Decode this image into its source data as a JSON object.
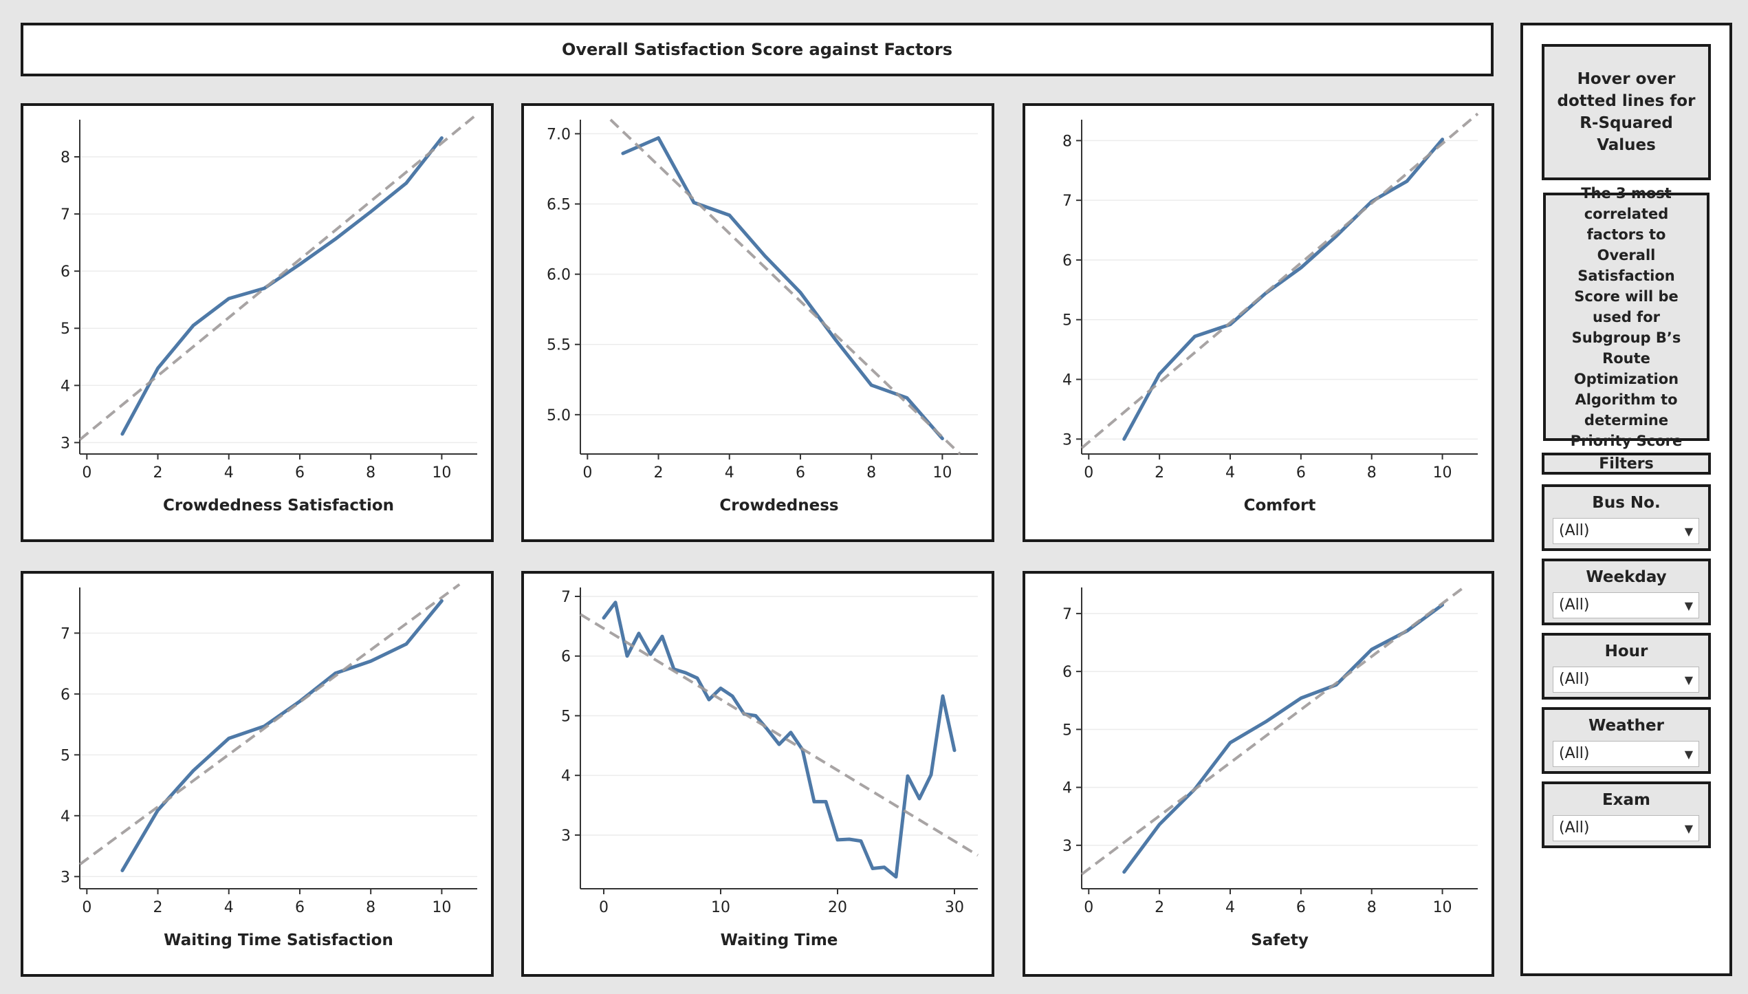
{
  "header": {
    "title": "Overall Satisfaction Score against Factors"
  },
  "sidebar": {
    "note1": "Hover over dotted lines for R-Squared Values",
    "note2": "The 3 most correlated factors to Overall Satisfaction Score will be used for Subgroup B’s Route Optimization Algorithm to determine Priority Score",
    "filters_title": "Filters",
    "filters": [
      {
        "label": "Bus No.",
        "value": "(All)"
      },
      {
        "label": "Weekday",
        "value": "(All)"
      },
      {
        "label": "Hour",
        "value": "(All)"
      },
      {
        "label": "Weather",
        "value": "(All)"
      },
      {
        "label": "Exam",
        "value": "(All)"
      }
    ]
  },
  "colors": {
    "line": "#4e79a7",
    "trend": "#9e9a9a",
    "grid": "#ececec",
    "axis": "#333333"
  },
  "chart_data": [
    {
      "type": "line",
      "xlabel": "Crowdedness Satisfaction",
      "xlim": [
        -0.2,
        11
      ],
      "ylim": [
        2.8,
        8.65
      ],
      "xticks": [
        0,
        2,
        4,
        6,
        8,
        10
      ],
      "yticks": [
        3,
        4,
        5,
        6,
        7,
        8
      ],
      "ytick_format": "int",
      "x": [
        1,
        2,
        3,
        4,
        5,
        6,
        7,
        8,
        9,
        10
      ],
      "y": [
        3.15,
        4.3,
        5.05,
        5.52,
        5.7,
        6.12,
        6.56,
        7.04,
        7.54,
        8.33
      ],
      "trend": [
        [
          -0.2,
          3.05
        ],
        [
          11,
          8.75
        ]
      ]
    },
    {
      "type": "line",
      "xlabel": "Crowdedness",
      "xlim": [
        -0.2,
        11
      ],
      "ylim": [
        4.72,
        7.1
      ],
      "xticks": [
        0,
        2,
        4,
        6,
        8,
        10
      ],
      "yticks": [
        5.0,
        5.5,
        6.0,
        6.5,
        7.0
      ],
      "ytick_format": "one_decimal",
      "x": [
        1,
        2,
        3,
        4,
        5,
        6,
        7,
        8,
        9,
        10
      ],
      "y": [
        6.86,
        6.97,
        6.51,
        6.42,
        6.13,
        5.87,
        5.53,
        5.21,
        5.12,
        4.83
      ],
      "trend": [
        [
          0.65,
          7.1
        ],
        [
          10.5,
          4.72
        ]
      ]
    },
    {
      "type": "line",
      "xlabel": "Comfort",
      "xlim": [
        -0.2,
        11
      ],
      "ylim": [
        2.75,
        8.35
      ],
      "xticks": [
        0,
        2,
        4,
        6,
        8,
        10
      ],
      "yticks": [
        3,
        4,
        5,
        6,
        7,
        8
      ],
      "ytick_format": "int",
      "x": [
        1,
        2,
        3,
        4,
        5,
        6,
        7,
        8,
        9,
        10
      ],
      "y": [
        3.0,
        4.09,
        4.72,
        4.92,
        5.44,
        5.87,
        6.4,
        6.98,
        7.32,
        8.02
      ],
      "trend": [
        [
          -0.2,
          2.85
        ],
        [
          11,
          8.45
        ]
      ]
    },
    {
      "type": "line",
      "xlabel": "Waiting Time Satisfaction",
      "xlim": [
        -0.2,
        11
      ],
      "ylim": [
        2.8,
        7.75
      ],
      "xticks": [
        0,
        2,
        4,
        6,
        8,
        10
      ],
      "yticks": [
        3,
        4,
        5,
        6,
        7
      ],
      "ytick_format": "int",
      "x": [
        1,
        2,
        3,
        4,
        5,
        6,
        7,
        8,
        9,
        10
      ],
      "y": [
        3.1,
        4.09,
        4.74,
        5.27,
        5.47,
        5.88,
        6.34,
        6.54,
        6.82,
        7.53
      ],
      "trend": [
        [
          -0.2,
          3.2
        ],
        [
          10.5,
          7.8
        ]
      ]
    },
    {
      "type": "line",
      "xlabel": "Waiting Time",
      "xlim": [
        -2,
        32
      ],
      "ylim": [
        2.1,
        7.15
      ],
      "xticks": [
        0,
        10,
        20,
        30
      ],
      "yticks": [
        3,
        4,
        5,
        6,
        7
      ],
      "ytick_format": "int",
      "x": [
        0,
        1,
        2,
        3,
        4,
        5,
        6,
        7,
        8,
        9,
        10,
        11,
        12,
        13,
        14,
        15,
        16,
        17,
        18,
        19,
        20,
        21,
        22,
        23,
        24,
        25,
        26,
        27,
        28,
        29,
        30
      ],
      "y": [
        6.64,
        6.9,
        6.0,
        6.38,
        6.03,
        6.33,
        5.78,
        5.72,
        5.63,
        5.27,
        5.46,
        5.33,
        5.03,
        5.0,
        4.77,
        4.52,
        4.72,
        4.43,
        3.56,
        3.56,
        2.92,
        2.93,
        2.9,
        2.44,
        2.46,
        2.3,
        3.99,
        3.61,
        4.01,
        5.33,
        4.42
      ],
      "trend": [
        [
          -2,
          6.7
        ],
        [
          32,
          2.66
        ]
      ]
    },
    {
      "type": "line",
      "xlabel": "Safety",
      "xlim": [
        -0.2,
        11
      ],
      "ylim": [
        2.25,
        7.45
      ],
      "xticks": [
        0,
        2,
        4,
        6,
        8,
        10
      ],
      "yticks": [
        3,
        4,
        5,
        6,
        7
      ],
      "ytick_format": "int",
      "x": [
        1,
        2,
        3,
        4,
        5,
        6,
        7,
        8,
        9,
        10
      ],
      "y": [
        2.54,
        3.36,
        3.97,
        4.77,
        5.13,
        5.54,
        5.77,
        6.38,
        6.7,
        7.15
      ],
      "trend": [
        [
          -0.2,
          2.5
        ],
        [
          10.6,
          7.45
        ]
      ]
    }
  ]
}
